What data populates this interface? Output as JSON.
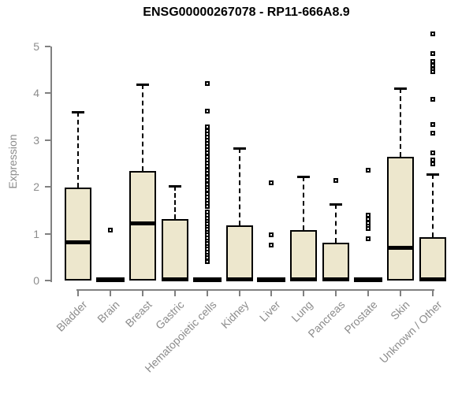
{
  "chart_data": {
    "type": "boxplot",
    "title": "ENSG00000267078 - RP11-666A8.9",
    "ylabel": "Expression",
    "xlabel": "",
    "ylim": [
      0,
      5.3
    ],
    "yticks": [
      0,
      1,
      2,
      3,
      4,
      5
    ],
    "grid": false,
    "legend": null,
    "categories": [
      "Bladder",
      "Brain",
      "Breast",
      "Gastric",
      "Hematopoietic cells",
      "Kidney",
      "Liver",
      "Lung",
      "Pancreas",
      "Prostate",
      "Skin",
      "Unknown / Other"
    ],
    "series": [
      {
        "name": "Bladder",
        "whisker_low": 0,
        "q1": 0,
        "median": 0.81,
        "q3": 1.98,
        "whisker_high": 3.61,
        "outliers": []
      },
      {
        "name": "Brain",
        "whisker_low": 0,
        "q1": 0,
        "median": 0.02,
        "q3": 0,
        "whisker_high": 0,
        "outliers": [
          1.07
        ]
      },
      {
        "name": "Breast",
        "whisker_low": 0,
        "q1": 0,
        "median": 1.22,
        "q3": 2.34,
        "whisker_high": 4.2,
        "outliers": []
      },
      {
        "name": "Gastric",
        "whisker_low": 0,
        "q1": 0,
        "median": 0.03,
        "q3": 1.31,
        "whisker_high": 2.02,
        "outliers": []
      },
      {
        "name": "Hematopoietic cells",
        "whisker_low": 0,
        "q1": 0,
        "median": 0.02,
        "q3": 0,
        "whisker_high": 0,
        "outliers": [
          4.21,
          3.62,
          3.28,
          3.2,
          3.13,
          3.06,
          3.0,
          2.93,
          2.86,
          2.79,
          2.72,
          2.65,
          2.58,
          2.51,
          2.44,
          2.36,
          2.29,
          2.21,
          2.13,
          2.06,
          1.99,
          1.93,
          1.86,
          1.79,
          1.72,
          1.65,
          1.58,
          1.46,
          1.39,
          1.33,
          1.27,
          1.21,
          1.15,
          1.09,
          1.03,
          0.97,
          0.91,
          0.85,
          0.79,
          0.73,
          0.67,
          0.6,
          0.54,
          0.48,
          0.41
        ]
      },
      {
        "name": "Kidney",
        "whisker_low": 0,
        "q1": 0,
        "median": 0.02,
        "q3": 1.18,
        "whisker_high": 2.83,
        "outliers": []
      },
      {
        "name": "Liver",
        "whisker_low": 0,
        "q1": 0,
        "median": 0.02,
        "q3": 0,
        "whisker_high": 0,
        "outliers": [
          2.08,
          0.98,
          0.76
        ]
      },
      {
        "name": "Lung",
        "whisker_low": 0,
        "q1": 0,
        "median": 0.02,
        "q3": 1.07,
        "whisker_high": 2.22,
        "outliers": []
      },
      {
        "name": "Pancreas",
        "whisker_low": 0,
        "q1": 0,
        "median": 0.02,
        "q3": 0.8,
        "whisker_high": 1.64,
        "outliers": [
          2.13
        ]
      },
      {
        "name": "Prostate",
        "whisker_low": 0,
        "q1": 0,
        "median": 0.02,
        "q3": 0,
        "whisker_high": 0,
        "outliers": [
          2.36,
          1.39,
          1.31,
          1.23,
          1.16,
          1.11,
          0.9
        ]
      },
      {
        "name": "Skin",
        "whisker_low": 0,
        "q1": 0,
        "median": 0.7,
        "q3": 2.64,
        "whisker_high": 4.1,
        "outliers": []
      },
      {
        "name": "Unknown / Other",
        "whisker_low": 0,
        "q1": 0,
        "median": 0.03,
        "q3": 0.93,
        "whisker_high": 2.27,
        "outliers": [
          5.27,
          4.85,
          4.68,
          4.59,
          4.52,
          4.46,
          3.88,
          3.33,
          3.15,
          2.73,
          2.57,
          2.5
        ]
      }
    ],
    "colors": {
      "box_fill": "#EDE7CD",
      "box_border": "#000000",
      "axis_line": "#808080",
      "axis_text": "#8c8c8c",
      "title_text": "#000000"
    }
  }
}
